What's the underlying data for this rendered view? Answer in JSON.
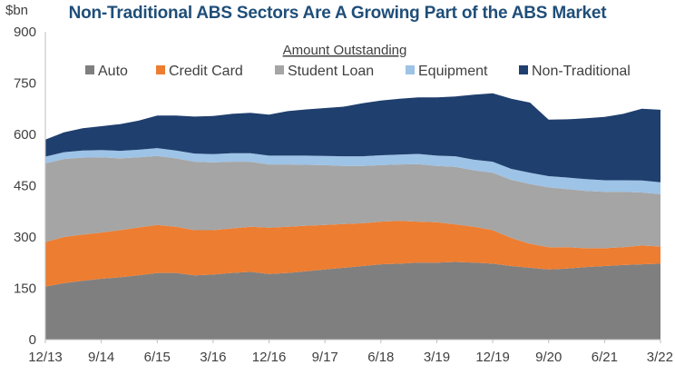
{
  "chart_data": {
    "type": "area",
    "stacked": true,
    "title": "Non-Traditional ABS Sectors Are A Growing Part of the ABS Market",
    "unit_label": "$bn",
    "legend_title": "Amount Outstanding",
    "ylim": [
      0,
      900
    ],
    "yticks": [
      "0",
      "150",
      "300",
      "450",
      "600",
      "750",
      "900"
    ],
    "ytick_values": [
      0,
      150,
      300,
      450,
      600,
      750,
      900
    ],
    "x": [
      "12/13",
      "3/14",
      "6/14",
      "9/14",
      "12/14",
      "3/15",
      "6/15",
      "9/15",
      "12/15",
      "3/16",
      "6/16",
      "9/16",
      "12/16",
      "3/17",
      "6/17",
      "9/17",
      "12/17",
      "3/18",
      "6/18",
      "9/18",
      "12/18",
      "3/19",
      "6/19",
      "9/19",
      "12/19",
      "3/20",
      "6/20",
      "9/20",
      "12/20",
      "3/21",
      "6/21",
      "9/21",
      "12/21",
      "3/22"
    ],
    "xticks": [
      "12/13",
      "9/14",
      "6/15",
      "3/16",
      "12/16",
      "9/17",
      "6/18",
      "3/19",
      "12/19",
      "9/20",
      "6/21",
      "3/22"
    ],
    "grid": false,
    "legend_position": "top",
    "series": [
      {
        "name": "Auto",
        "color": "#7f7f7f",
        "values": [
          155,
          165,
          172,
          178,
          182,
          188,
          195,
          195,
          188,
          190,
          195,
          198,
          192,
          195,
          200,
          205,
          210,
          215,
          220,
          222,
          225,
          225,
          227,
          225,
          222,
          215,
          210,
          205,
          208,
          212,
          215,
          218,
          220,
          222
        ]
      },
      {
        "name": "Credit Card",
        "color": "#ed7d31",
        "values": [
          130,
          135,
          135,
          135,
          138,
          140,
          140,
          135,
          132,
          130,
          130,
          132,
          135,
          135,
          133,
          130,
          128,
          125,
          125,
          125,
          120,
          118,
          110,
          105,
          98,
          82,
          70,
          65,
          62,
          55,
          52,
          52,
          55,
          50
        ]
      },
      {
        "name": "Student Loan",
        "color": "#a5a5a5",
        "values": [
          230,
          228,
          225,
          220,
          210,
          205,
          202,
          200,
          200,
          198,
          195,
          190,
          185,
          182,
          178,
          175,
          170,
          168,
          165,
          165,
          168,
          165,
          168,
          165,
          168,
          170,
          175,
          175,
          170,
          168,
          165,
          162,
          155,
          153
        ]
      },
      {
        "name": "Equipment",
        "color": "#9dc3e6",
        "values": [
          20,
          20,
          21,
          21,
          22,
          22,
          23,
          23,
          24,
          24,
          25,
          25,
          26,
          26,
          27,
          27,
          28,
          28,
          29,
          29,
          30,
          30,
          31,
          31,
          32,
          32,
          33,
          33,
          34,
          34,
          34,
          34,
          35,
          35
        ]
      },
      {
        "name": "Non-Traditional",
        "color": "#1f3f6e",
        "values": [
          50,
          58,
          65,
          70,
          78,
          85,
          95,
          102,
          108,
          112,
          115,
          118,
          120,
          130,
          135,
          140,
          145,
          155,
          160,
          163,
          165,
          170,
          175,
          190,
          200,
          205,
          205,
          165,
          170,
          178,
          185,
          194,
          210,
          212
        ]
      }
    ]
  }
}
